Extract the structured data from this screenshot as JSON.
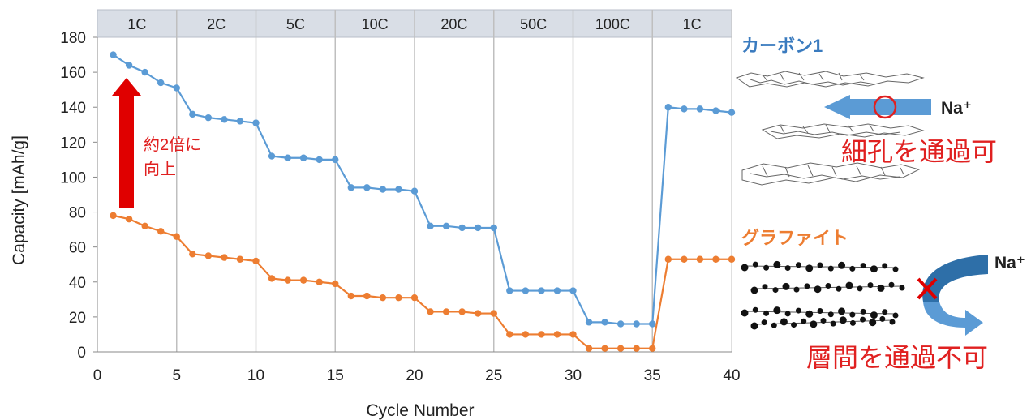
{
  "chart_data": {
    "type": "line",
    "xlabel": "Cycle Number",
    "ylabel": "Capacity [mAh/g]",
    "xlim": [
      0,
      40
    ],
    "ylim": [
      0,
      180
    ],
    "xticks": [
      0,
      5,
      10,
      15,
      20,
      25,
      30,
      35,
      40
    ],
    "yticks": [
      0,
      20,
      40,
      60,
      80,
      100,
      120,
      140,
      160,
      180
    ],
    "rate_segments": [
      {
        "label": "1C",
        "start": 0,
        "end": 5
      },
      {
        "label": "2C",
        "start": 5,
        "end": 10
      },
      {
        "label": "5C",
        "start": 10,
        "end": 15
      },
      {
        "label": "10C",
        "start": 15,
        "end": 20
      },
      {
        "label": "20C",
        "start": 20,
        "end": 25
      },
      {
        "label": "50C",
        "start": 25,
        "end": 30
      },
      {
        "label": "100C",
        "start": 30,
        "end": 35
      },
      {
        "label": "1C",
        "start": 35,
        "end": 40
      }
    ],
    "x": [
      1,
      2,
      3,
      4,
      5,
      6,
      7,
      8,
      9,
      10,
      11,
      12,
      13,
      14,
      15,
      16,
      17,
      18,
      19,
      20,
      21,
      22,
      23,
      24,
      25,
      26,
      27,
      28,
      29,
      30,
      31,
      32,
      33,
      34,
      35,
      36,
      37,
      38,
      39,
      40
    ],
    "series": [
      {
        "name": "カーボン1",
        "color": "#5b9bd5",
        "values": [
          170,
          164,
          160,
          154,
          151,
          136,
          134,
          133,
          132,
          131,
          112,
          111,
          111,
          110,
          110,
          94,
          94,
          93,
          93,
          92,
          72,
          72,
          71,
          71,
          71,
          35,
          35,
          35,
          35,
          35,
          17,
          17,
          16,
          16,
          16,
          140,
          139,
          139,
          138,
          137
        ]
      },
      {
        "name": "グラファイト",
        "color": "#ed7d31",
        "values": [
          78,
          76,
          72,
          69,
          66,
          56,
          55,
          54,
          53,
          52,
          42,
          41,
          41,
          40,
          39,
          32,
          32,
          31,
          31,
          31,
          23,
          23,
          23,
          22,
          22,
          10,
          10,
          10,
          10,
          10,
          2,
          2,
          2,
          2,
          2,
          53,
          53,
          53,
          53,
          53
        ]
      }
    ],
    "grid": "vertical at rate changes",
    "annotations": {
      "improvement": "約2倍に\n向上",
      "carbon_label": "カーボン1",
      "carbon_text": "細孔を通過可",
      "graphite_label": "グラファイト",
      "graphite_text": "層間を通過不可",
      "ion": "Na⁺"
    },
    "colors": {
      "improvement_arrow": "#e00000",
      "text_red": "#e02020",
      "header_band": "#d9dee6",
      "gridline": "#bfbfbf"
    }
  }
}
